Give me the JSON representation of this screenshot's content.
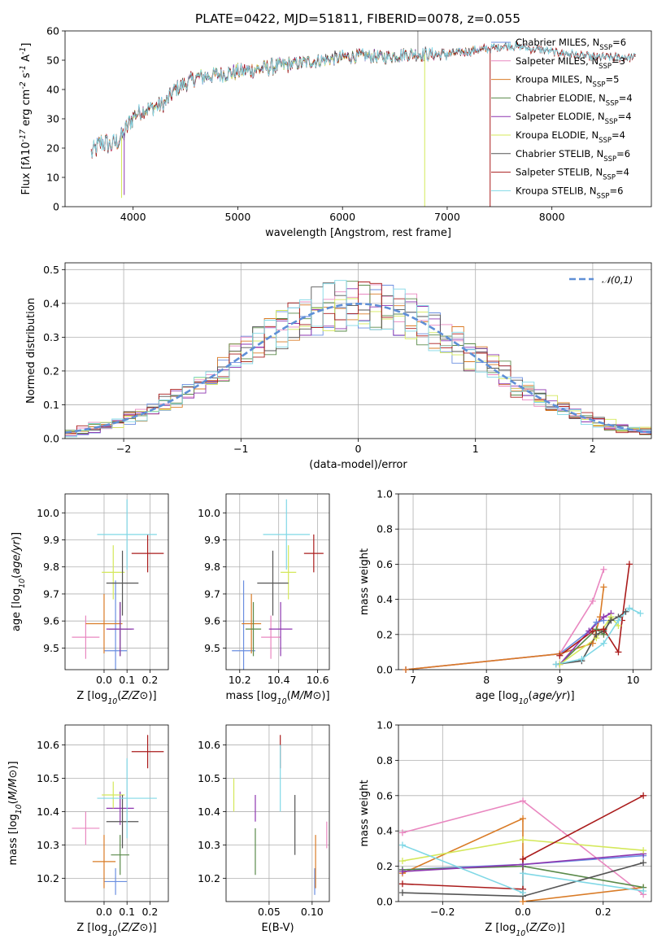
{
  "title": "PLATE=0422, MJD=51811, FIBERID=0078, z=0.055",
  "colors": {
    "Chabrier MILES": "#6a8ee0",
    "Salpeter MILES": "#e987c0",
    "Kroupa MILES": "#d97b26",
    "Chabrier ELODIE": "#5a8a4a",
    "Salpeter ELODIE": "#8e36b0",
    "Kroupa ELODIE": "#d4e85a",
    "Chabrier STELIB": "#555555",
    "Salpeter STELIB": "#aa1c1c",
    "Kroupa STELIB": "#80d8e6",
    "normal": "#5f8fd6"
  },
  "chart_data": [
    {
      "id": "spectrum",
      "type": "line",
      "xlabel": "wavelength [Angstrom, rest frame]",
      "ylabel": "Flux [f$_\\lambda$10$^{-17}$ erg cm$^{-2}$ s$^{-1}$ A$^{-1}$]",
      "xlim": [
        3350,
        8950
      ],
      "ylim": [
        0,
        60
      ],
      "xticks": [
        4000,
        5000,
        6000,
        7000,
        8000
      ],
      "yticks": [
        0,
        10,
        20,
        30,
        40,
        50,
        60
      ],
      "legend_position": "top-right",
      "legend": [
        {
          "label": "Chabrier MILES, N",
          "sub": "SSP",
          "suffix": "=6"
        },
        {
          "label": "Salpeter MILES, N",
          "sub": "SSP",
          "suffix": "=3"
        },
        {
          "label": "Kroupa MILES, N",
          "sub": "SSP",
          "suffix": "=5"
        },
        {
          "label": "Chabrier ELODIE, N",
          "sub": "SSP",
          "suffix": "=4"
        },
        {
          "label": "Salpeter ELODIE, N",
          "sub": "SSP",
          "suffix": "=4"
        },
        {
          "label": "Kroupa ELODIE, N",
          "sub": "SSP",
          "suffix": "=4"
        },
        {
          "label": "Chabrier STELIB, N",
          "sub": "SSP",
          "suffix": "=6"
        },
        {
          "label": "Salpeter STELIB, N",
          "sub": "SSP",
          "suffix": "=4"
        },
        {
          "label": "Kroupa STELIB, N",
          "sub": "SSP",
          "suffix": "=6"
        }
      ],
      "spectrum_shape": {
        "x": [
          3600,
          3700,
          3800,
          3900,
          4000,
          4100,
          4200,
          4300,
          4400,
          4600,
          4800,
          5000,
          5200,
          5400,
          5600,
          5800,
          6000,
          6200,
          6400,
          6600,
          6800,
          7000,
          7200,
          7400,
          7600,
          7800,
          8000,
          8200,
          8400,
          8600,
          8800
        ],
        "y": [
          18,
          22,
          21,
          24,
          31,
          33,
          34,
          35,
          40,
          44,
          45,
          46,
          47,
          48,
          49,
          50,
          51,
          51.5,
          51,
          52,
          52,
          52,
          53,
          54,
          55,
          54,
          53,
          52,
          51,
          51,
          51
        ]
      },
      "model_x_ranges": {
        "MILES": [
          3600,
          7400
        ],
        "ELODIE": [
          3900,
          6800
        ],
        "STELIB": [
          3600,
          8800
        ]
      }
    },
    {
      "id": "residuals",
      "type": "histogram",
      "xlabel": "(data-model)/error",
      "ylabel": "Normed distribution",
      "xlim": [
        -2.5,
        2.5
      ],
      "ylim": [
        0,
        0.52
      ],
      "xticks": [
        -2,
        -1,
        0,
        1,
        2
      ],
      "yticks": [
        0.0,
        0.1,
        0.2,
        0.3,
        0.4,
        0.5
      ],
      "legend": "$\\mathcal{N}(0,1)$",
      "legend_position": "top-right",
      "bin_width": 0.1
    },
    {
      "id": "age-Z",
      "type": "errorbar",
      "xlabel": "Z [log$_{10}$($Z/Z_\\odot$)]",
      "ylabel": "age  [log$_{10}$($age/yr$)]",
      "xlim": [
        -0.17,
        0.28
      ],
      "ylim": [
        9.42,
        10.07
      ],
      "xticks": [
        0.0,
        0.1,
        0.2
      ],
      "yticks": [
        9.5,
        9.6,
        9.7,
        9.8,
        9.9,
        10.0
      ],
      "points": [
        {
          "model": "Chabrier MILES",
          "x": 0.05,
          "xerr": 0.05,
          "y": 9.49,
          "yerr": 0.26
        },
        {
          "model": "Salpeter MILES",
          "x": -0.08,
          "xerr": 0.06,
          "y": 9.54,
          "yerr": 0.08
        },
        {
          "model": "Kroupa MILES",
          "x": 0.0,
          "xerr": 0.08,
          "y": 9.59,
          "yerr": 0.11
        },
        {
          "model": "Chabrier ELODIE",
          "x": 0.07,
          "xerr": 0.05,
          "y": 9.57,
          "yerr": 0.1
        },
        {
          "model": "Salpeter ELODIE",
          "x": 0.07,
          "xerr": 0.06,
          "y": 9.57,
          "yerr": 0.1
        },
        {
          "model": "Kroupa ELODIE",
          "x": 0.04,
          "xerr": 0.05,
          "y": 9.78,
          "yerr": 0.1
        },
        {
          "model": "Chabrier STELIB",
          "x": 0.08,
          "xerr": 0.07,
          "y": 9.74,
          "yerr": 0.12
        },
        {
          "model": "Salpeter STELIB",
          "x": 0.19,
          "xerr": 0.07,
          "y": 9.85,
          "yerr": 0.07
        },
        {
          "model": "Kroupa STELIB",
          "x": 0.1,
          "xerr": 0.13,
          "y": 9.92,
          "yerr": 0.13
        }
      ]
    },
    {
      "id": "age-mass",
      "type": "errorbar",
      "xlabel": "mass [log$_{10}$($M/M_\\odot$)]",
      "ylabel": "",
      "xlim": [
        10.13,
        10.66
      ],
      "ylim": [
        9.42,
        10.07
      ],
      "xticks": [
        10.2,
        10.4,
        10.6
      ],
      "yticks": [
        9.5,
        9.6,
        9.7,
        9.8,
        9.9,
        10.0
      ],
      "points": [
        {
          "model": "Chabrier MILES",
          "x": 10.22,
          "xerr": 0.06,
          "y": 9.49,
          "yerr": 0.26
        },
        {
          "model": "Salpeter MILES",
          "x": 10.36,
          "xerr": 0.05,
          "y": 9.54,
          "yerr": 0.08
        },
        {
          "model": "Kroupa MILES",
          "x": 10.26,
          "xerr": 0.05,
          "y": 9.59,
          "yerr": 0.11
        },
        {
          "model": "Chabrier ELODIE",
          "x": 10.27,
          "xerr": 0.04,
          "y": 9.57,
          "yerr": 0.1
        },
        {
          "model": "Salpeter ELODIE",
          "x": 10.41,
          "xerr": 0.06,
          "y": 9.57,
          "yerr": 0.1
        },
        {
          "model": "Kroupa ELODIE",
          "x": 10.45,
          "xerr": 0.04,
          "y": 9.78,
          "yerr": 0.1
        },
        {
          "model": "Chabrier STELIB",
          "x": 10.37,
          "xerr": 0.08,
          "y": 9.74,
          "yerr": 0.12
        },
        {
          "model": "Salpeter STELIB",
          "x": 10.58,
          "xerr": 0.05,
          "y": 9.85,
          "yerr": 0.07
        },
        {
          "model": "Kroupa STELIB",
          "x": 10.44,
          "xerr": 0.12,
          "y": 9.92,
          "yerr": 0.13
        }
      ]
    },
    {
      "id": "weight-age",
      "type": "line",
      "xlabel": "age  [log$_{10}$($age/yr$)]",
      "ylabel": "mass weight",
      "xlim": [
        6.8,
        10.25
      ],
      "ylim": [
        0,
        1.0
      ],
      "xticks": [
        7,
        8,
        9,
        10
      ],
      "yticks": [
        0.0,
        0.2,
        0.4,
        0.6,
        0.8,
        1.0
      ],
      "series": [
        {
          "model": "Chabrier MILES",
          "x": [
            6.9,
            9.0,
            9.4,
            9.5,
            9.6
          ],
          "y": [
            0.0,
            0.09,
            0.22,
            0.27,
            0.28
          ]
        },
        {
          "model": "Salpeter MILES",
          "x": [
            6.9,
            9.0,
            9.45,
            9.6
          ],
          "y": [
            0.0,
            0.09,
            0.39,
            0.57
          ]
        },
        {
          "model": "Kroupa MILES",
          "x": [
            6.9,
            9.0,
            9.45,
            9.55,
            9.6
          ],
          "y": [
            0.0,
            0.09,
            0.15,
            0.3,
            0.47
          ]
        },
        {
          "model": "Chabrier ELODIE",
          "x": [
            9.0,
            9.5,
            9.6,
            9.7
          ],
          "y": [
            0.03,
            0.23,
            0.2,
            0.3
          ]
        },
        {
          "model": "Salpeter ELODIE",
          "x": [
            9.0,
            9.4,
            9.6,
            9.7
          ],
          "y": [
            0.03,
            0.22,
            0.3,
            0.32
          ]
        },
        {
          "model": "Kroupa ELODIE",
          "x": [
            9.0,
            9.5,
            9.7,
            9.8
          ],
          "y": [
            0.03,
            0.18,
            0.3,
            0.25
          ]
        },
        {
          "model": "Chabrier STELIB",
          "x": [
            8.95,
            9.3,
            9.5,
            9.6,
            9.7,
            9.8,
            9.9
          ],
          "y": [
            0.03,
            0.05,
            0.2,
            0.22,
            0.28,
            0.3,
            0.33
          ]
        },
        {
          "model": "Salpeter STELIB",
          "x": [
            9.0,
            9.45,
            9.6,
            9.8,
            9.85,
            9.95
          ],
          "y": [
            0.08,
            0.22,
            0.23,
            0.1,
            0.28,
            0.6
          ]
        },
        {
          "model": "Kroupa STELIB",
          "x": [
            8.95,
            9.3,
            9.6,
            9.8,
            9.95,
            10.1
          ],
          "y": [
            0.03,
            0.06,
            0.15,
            0.28,
            0.35,
            0.32
          ]
        }
      ]
    },
    {
      "id": "mass-Z",
      "type": "errorbar",
      "xlabel": "Z [log$_{10}$($Z/Z_\\odot$)]",
      "ylabel": "mass [log$_{10}$($M/M_\\odot$)]",
      "xlim": [
        -0.17,
        0.28
      ],
      "ylim": [
        10.13,
        10.66
      ],
      "xticks": [
        0.0,
        0.1,
        0.2
      ],
      "yticks": [
        10.2,
        10.3,
        10.4,
        10.5,
        10.6
      ],
      "points": [
        {
          "model": "Chabrier MILES",
          "x": 0.05,
          "xerr": 0.05,
          "y": 10.19,
          "yerr": 0.04
        },
        {
          "model": "Salpeter MILES",
          "x": -0.08,
          "xerr": 0.06,
          "y": 10.35,
          "yerr": 0.05
        },
        {
          "model": "Kroupa MILES",
          "x": 0.0,
          "xerr": 0.05,
          "y": 10.25,
          "yerr": 0.08
        },
        {
          "model": "Chabrier ELODIE",
          "x": 0.07,
          "xerr": 0.04,
          "y": 10.27,
          "yerr": 0.06
        },
        {
          "model": "Salpeter ELODIE",
          "x": 0.07,
          "xerr": 0.06,
          "y": 10.41,
          "yerr": 0.05
        },
        {
          "model": "Kroupa ELODIE",
          "x": 0.04,
          "xerr": 0.05,
          "y": 10.45,
          "yerr": 0.04
        },
        {
          "model": "Chabrier STELIB",
          "x": 0.08,
          "xerr": 0.07,
          "y": 10.37,
          "yerr": 0.08
        },
        {
          "model": "Salpeter STELIB",
          "x": 0.19,
          "xerr": 0.07,
          "y": 10.58,
          "yerr": 0.05
        },
        {
          "model": "Kroupa STELIB",
          "x": 0.1,
          "xerr": 0.13,
          "y": 10.44,
          "yerr": 0.12
        }
      ]
    },
    {
      "id": "mass-EBV",
      "type": "errorbar",
      "xlabel": "E(B-V)",
      "ylabel": "",
      "xlim": [
        0.0,
        0.12
      ],
      "ylim": [
        10.13,
        10.66
      ],
      "xticks": [
        0.05,
        0.1
      ],
      "yticks": [
        10.2,
        10.3,
        10.4,
        10.5,
        10.6
      ],
      "points": [
        {
          "model": "Chabrier MILES",
          "x": 0.103,
          "xerr": 0,
          "y": 10.19,
          "yerr": 0.04
        },
        {
          "model": "Salpeter MILES",
          "x": 0.117,
          "xerr": 0,
          "y": 10.33,
          "yerr": 0.04
        },
        {
          "model": "Kroupa MILES",
          "x": 0.104,
          "xerr": 0,
          "y": 10.25,
          "yerr": 0.08
        },
        {
          "model": "Chabrier ELODIE",
          "x": 0.034,
          "xerr": 0,
          "y": 10.28,
          "yerr": 0.07
        },
        {
          "model": "Salpeter ELODIE",
          "x": 0.034,
          "xerr": 0,
          "y": 10.41,
          "yerr": 0.04
        },
        {
          "model": "Kroupa ELODIE",
          "x": 0.009,
          "xerr": 0,
          "y": 10.45,
          "yerr": 0.05
        },
        {
          "model": "Chabrier STELIB",
          "x": 0.08,
          "xerr": 0,
          "y": 10.36,
          "yerr": 0.09
        },
        {
          "model": "Salpeter STELIB",
          "x": 0.063,
          "xerr": 0,
          "y": 10.58,
          "yerr": 0.05
        },
        {
          "model": "Kroupa STELIB",
          "x": 0.063,
          "xerr": 0,
          "y": 10.5,
          "yerr": 0.1
        }
      ]
    },
    {
      "id": "weight-Z",
      "type": "line",
      "xlabel": "Z [log$_{10}$($Z/Z_\\odot$)]",
      "ylabel": "mass weight",
      "xlim": [
        -0.31,
        0.32
      ],
      "ylim": [
        0,
        1.0
      ],
      "xticks": [
        -0.2,
        0.0,
        0.2
      ],
      "yticks": [
        0.0,
        0.2,
        0.4,
        0.6,
        0.8,
        1.0
      ],
      "series": [
        {
          "model": "Chabrier MILES",
          "x": [
            -0.3,
            0.0,
            0.3
          ],
          "y": [
            0.18,
            0.21,
            0.26
          ]
        },
        {
          "model": "Salpeter MILES",
          "x": [
            -0.3,
            0.0,
            0.3
          ],
          "y": [
            0.39,
            0.57,
            0.04
          ]
        },
        {
          "model": "Kroupa MILES",
          "x": [
            -0.3,
            0.0,
            0.0,
            0.3
          ],
          "y": [
            0.16,
            0.47,
            0.0,
            0.08
          ]
        },
        {
          "model": "Chabrier ELODIE",
          "x": [
            -0.3,
            0.0,
            0.3
          ],
          "y": [
            0.18,
            0.2,
            0.08
          ]
        },
        {
          "model": "Salpeter ELODIE",
          "x": [
            -0.3,
            0.0,
            0.3
          ],
          "y": [
            0.17,
            0.21,
            0.27
          ]
        },
        {
          "model": "Kroupa ELODIE",
          "x": [
            -0.3,
            0.0,
            0.3
          ],
          "y": [
            0.23,
            0.35,
            0.29
          ]
        },
        {
          "model": "Chabrier STELIB",
          "x": [
            -0.3,
            0.0,
            0.3
          ],
          "y": [
            0.05,
            0.03,
            0.22
          ]
        },
        {
          "model": "Salpeter STELIB",
          "x": [
            -0.3,
            0.0,
            0.0,
            0.3
          ],
          "y": [
            0.1,
            0.07,
            0.24,
            0.6
          ]
        },
        {
          "model": "Kroupa STELIB",
          "x": [
            -0.3,
            0.0,
            0.0,
            0.3
          ],
          "y": [
            0.32,
            0.05,
            0.16,
            0.06
          ]
        }
      ]
    }
  ]
}
